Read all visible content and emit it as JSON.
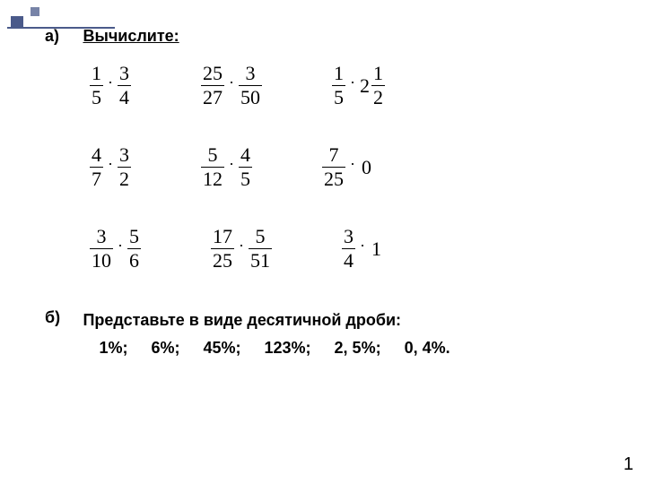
{
  "decoration": {
    "line_color": "#4a5a8a",
    "square_color": "#4a5a8a"
  },
  "section_a": {
    "label": "а)",
    "title": "Вычислите:",
    "grid": [
      [
        {
          "type": "frac_times_frac",
          "a_num": "1",
          "a_den": "5",
          "b_num": "3",
          "b_den": "4"
        },
        {
          "type": "frac_times_frac",
          "a_num": "25",
          "a_den": "27",
          "b_num": "3",
          "b_den": "50"
        },
        {
          "type": "frac_times_mixed",
          "a_num": "1",
          "a_den": "5",
          "whole": "2",
          "b_num": "1",
          "b_den": "2"
        }
      ],
      [
        {
          "type": "frac_times_frac",
          "a_num": "4",
          "a_den": "7",
          "b_num": "3",
          "b_den": "2"
        },
        {
          "type": "frac_times_frac",
          "a_num": "5",
          "a_den": "12",
          "b_num": "4",
          "b_den": "5"
        },
        {
          "type": "frac_times_int",
          "a_num": "7",
          "a_den": "25",
          "int": "0"
        }
      ],
      [
        {
          "type": "frac_times_frac",
          "a_num": "3",
          "a_den": "10",
          "b_num": "5",
          "b_den": "6"
        },
        {
          "type": "frac_times_frac",
          "a_num": "17",
          "a_den": "25",
          "b_num": "5",
          "b_den": "51"
        },
        {
          "type": "frac_times_int",
          "a_num": "3",
          "a_den": "4",
          "int": "1"
        }
      ]
    ]
  },
  "section_b": {
    "label": "б)",
    "title": "Представьте в виде десятичной дроби:",
    "percents": [
      "1%;",
      "6%;",
      "45%;",
      "123%;",
      "2, 5%;",
      "0, 4%."
    ]
  },
  "page_number": "1"
}
